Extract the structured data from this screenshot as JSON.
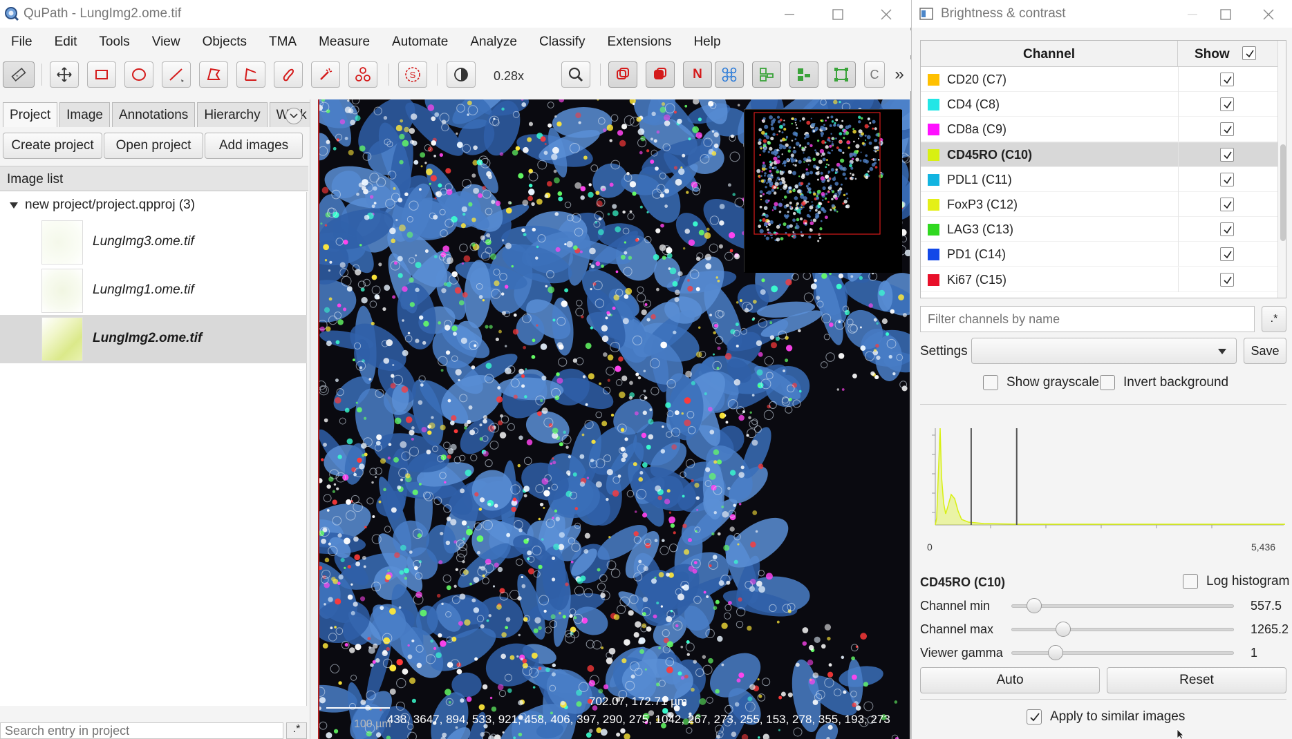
{
  "main_window": {
    "title": "QuPath - LungImg2.ome.tif",
    "menu": [
      "File",
      "Edit",
      "Tools",
      "View",
      "Objects",
      "TMA",
      "Measure",
      "Automate",
      "Analyze",
      "Classify",
      "Extensions",
      "Help"
    ],
    "toolbar": {
      "zoom": "0.28x",
      "buttons": [
        "measure-icon",
        "move-icon",
        "rectangle-icon",
        "ellipse-icon",
        "line-icon",
        "polygon-icon",
        "polyline-icon",
        "brush-icon",
        "wand-icon",
        "points-icon",
        "selection-mode-icon",
        "brightness-contrast-icon",
        "zoom-to-fit-icon",
        "show-annotations-icon",
        "fill-annotations-icon",
        "show-names-icon",
        "show-tma-grid-icon",
        "show-detections-icon",
        "fill-detections-icon",
        "pixel-classification-icon",
        "c-button-icon",
        "more-icon"
      ],
      "more_label": "»",
      "name_label": "N",
      "c_label": "C"
    }
  },
  "left_panel": {
    "tabs": [
      "Project",
      "Image",
      "Annotations",
      "Hierarchy",
      "Work"
    ],
    "active_tab": "Project",
    "buttons": {
      "create": "Create project",
      "open": "Open project",
      "add": "Add images"
    },
    "image_list_header": "Image list",
    "tree_root": "new project/project.qpproj (3)",
    "images": [
      {
        "name": "LungImg3.ome.tif",
        "selected": false
      },
      {
        "name": "LungImg1.ome.tif",
        "selected": false
      },
      {
        "name": "LungImg2.ome.tif",
        "selected": true
      }
    ],
    "search_placeholder": "Search entry in project",
    "regex_label": ".*"
  },
  "viewer": {
    "cursor_position": "702.07, 172.71 µm",
    "pixel_values": "438, 3647, 894, 533, 921, 458, 406, 397, 290, 275, 1042, 267, 273, 255, 153, 278, 355, 193, 273",
    "scale_label": "100 µm"
  },
  "bc_window": {
    "title": "Brightness & contrast",
    "table_headers": {
      "channel": "Channel",
      "show": "Show"
    },
    "channels": [
      {
        "name": "CD20 (C7)",
        "color": "#ffc000",
        "show": true
      },
      {
        "name": "CD4 (C8)",
        "color": "#22e6e6",
        "show": true
      },
      {
        "name": "CD8a (C9)",
        "color": "#ff10ff",
        "show": true
      },
      {
        "name": "CD45RO (C10)",
        "color": "#d8f012",
        "show": true,
        "selected": true
      },
      {
        "name": "PDL1 (C11)",
        "color": "#12b4e0",
        "show": true
      },
      {
        "name": "FoxP3 (C12)",
        "color": "#e4f018",
        "show": true
      },
      {
        "name": "LAG3 (C13)",
        "color": "#30d820",
        "show": true
      },
      {
        "name": "PD1 (C14)",
        "color": "#1248e8",
        "show": true
      },
      {
        "name": "Ki67 (C15)",
        "color": "#e8102a",
        "show": true
      }
    ],
    "filter_placeholder": "Filter channels by name",
    "filter_regex": ".*",
    "settings_label": "Settings",
    "save_label": "Save",
    "show_grayscale": "Show grayscale",
    "invert_background": "Invert background",
    "histogram": {
      "x_min": "0",
      "x_max": "5,436",
      "channel_min": 557.5,
      "channel_max": 1265.2,
      "range_max": 5436,
      "line_color": "#d8f012"
    },
    "selected_channel": "CD45RO (C10)",
    "log_histogram": "Log histogram",
    "sliders": [
      {
        "label": "Channel min",
        "value": "557.5",
        "fraction": 0.103
      },
      {
        "label": "Channel max",
        "value": "1265.2",
        "fraction": 0.233
      },
      {
        "label": "Viewer gamma",
        "value": "1",
        "fraction": 0.2
      }
    ],
    "auto_label": "Auto",
    "reset_label": "Reset",
    "apply_similar": "Apply to similar images"
  }
}
